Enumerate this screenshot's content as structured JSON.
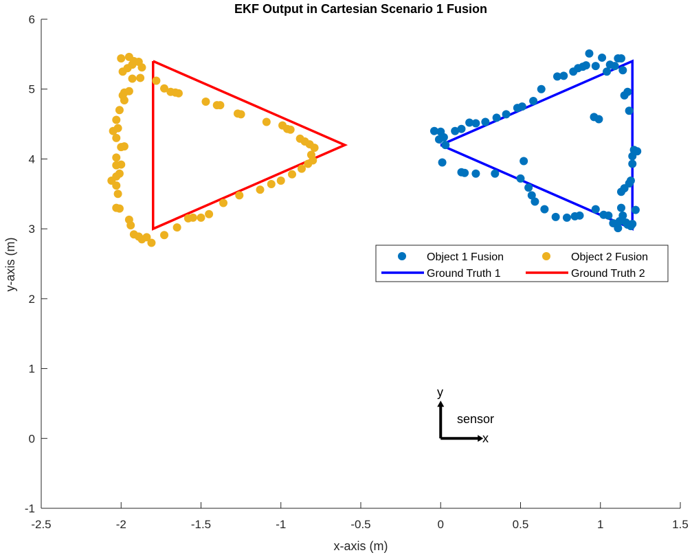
{
  "chart_data": {
    "type": "scatter",
    "title": "EKF Output in Cartesian Scenario 1 Fusion",
    "xlabel": "x-axis (m)",
    "ylabel": "y-axis (m)",
    "xlim": [
      -2.5,
      1.5
    ],
    "ylim": [
      -1,
      6
    ],
    "xticks": [
      -2.5,
      -2,
      -1.5,
      -1,
      -0.5,
      0,
      0.5,
      1,
      1.5
    ],
    "xtick_labels": [
      "-2.5",
      "-2",
      "-1.5",
      "-1",
      "-0.5",
      "0",
      "0.5",
      "1",
      "1.5"
    ],
    "yticks": [
      -1,
      0,
      1,
      2,
      3,
      4,
      5,
      6
    ],
    "ytick_labels": [
      "-1",
      "0",
      "1",
      "2",
      "3",
      "4",
      "5",
      "6"
    ],
    "grid": false,
    "legend_position": "upper-right inside, two columns",
    "legend": [
      {
        "label": "Object 1 Fusion",
        "kind": "marker",
        "color": "#0072BD"
      },
      {
        "label": "Object 2 Fusion",
        "kind": "marker",
        "color": "#EDB120"
      },
      {
        "label": "Ground Truth 1",
        "kind": "line",
        "color": "#0000FF"
      },
      {
        "label": "Ground Truth 2",
        "kind": "line",
        "color": "#FF0000"
      }
    ],
    "series": [
      {
        "name": "Object 1 Fusion",
        "kind": "scatter",
        "color": "#0072BD",
        "points": [
          [
            -0.04,
            4.4
          ],
          [
            0.0,
            4.39
          ],
          [
            0.02,
            4.31
          ],
          [
            -0.01,
            4.28
          ],
          [
            0.03,
            4.2
          ],
          [
            0.09,
            4.4
          ],
          [
            0.13,
            4.43
          ],
          [
            0.18,
            4.52
          ],
          [
            0.22,
            4.51
          ],
          [
            0.28,
            4.53
          ],
          [
            0.35,
            4.59
          ],
          [
            0.41,
            4.64
          ],
          [
            0.48,
            4.73
          ],
          [
            0.51,
            4.75
          ],
          [
            0.58,
            4.83
          ],
          [
            0.63,
            5.0
          ],
          [
            0.73,
            5.18
          ],
          [
            0.77,
            5.19
          ],
          [
            0.83,
            5.25
          ],
          [
            0.86,
            5.3
          ],
          [
            0.89,
            5.32
          ],
          [
            0.91,
            5.34
          ],
          [
            0.93,
            5.51
          ],
          [
            0.97,
            5.33
          ],
          [
            1.01,
            5.45
          ],
          [
            1.04,
            5.25
          ],
          [
            1.06,
            5.35
          ],
          [
            1.09,
            5.33
          ],
          [
            1.11,
            5.44
          ],
          [
            1.13,
            5.44
          ],
          [
            1.14,
            5.27
          ],
          [
            1.15,
            4.91
          ],
          [
            1.17,
            4.96
          ],
          [
            1.18,
            4.69
          ],
          [
            0.96,
            4.6
          ],
          [
            0.99,
            4.57
          ],
          [
            0.97,
            3.28
          ],
          [
            1.02,
            3.2
          ],
          [
            1.05,
            3.19
          ],
          [
            1.08,
            3.08
          ],
          [
            1.11,
            3.01
          ],
          [
            1.12,
            3.11
          ],
          [
            1.13,
            3.3
          ],
          [
            1.14,
            3.19
          ],
          [
            1.16,
            3.09
          ],
          [
            1.17,
            3.06
          ],
          [
            1.19,
            3.04
          ],
          [
            1.2,
            3.07
          ],
          [
            1.22,
            3.27
          ],
          [
            1.13,
            3.53
          ],
          [
            1.15,
            3.58
          ],
          [
            1.18,
            3.65
          ],
          [
            1.19,
            3.69
          ],
          [
            1.2,
            3.93
          ],
          [
            1.2,
            4.04
          ],
          [
            1.21,
            4.13
          ],
          [
            1.23,
            4.11
          ],
          [
            0.01,
            3.95
          ],
          [
            0.13,
            3.81
          ],
          [
            0.15,
            3.8
          ],
          [
            0.22,
            3.79
          ],
          [
            0.34,
            3.79
          ],
          [
            0.52,
            3.97
          ],
          [
            0.5,
            3.72
          ],
          [
            0.55,
            3.59
          ],
          [
            0.57,
            3.48
          ],
          [
            0.59,
            3.39
          ],
          [
            0.65,
            3.28
          ],
          [
            0.72,
            3.17
          ],
          [
            0.79,
            3.16
          ],
          [
            0.84,
            3.18
          ],
          [
            0.87,
            3.19
          ]
        ]
      },
      {
        "name": "Object 2 Fusion",
        "kind": "scatter",
        "color": "#EDB120",
        "points": [
          [
            -2.0,
            5.44
          ],
          [
            -1.95,
            5.46
          ],
          [
            -1.93,
            5.35
          ],
          [
            -1.96,
            5.3
          ],
          [
            -1.99,
            5.25
          ],
          [
            -1.92,
            5.4
          ],
          [
            -1.89,
            5.39
          ],
          [
            -1.87,
            5.31
          ],
          [
            -1.93,
            5.15
          ],
          [
            -1.95,
            4.97
          ],
          [
            -1.98,
            4.95
          ],
          [
            -1.99,
            4.91
          ],
          [
            -1.98,
            4.84
          ],
          [
            -2.01,
            4.7
          ],
          [
            -2.03,
            4.56
          ],
          [
            -2.02,
            4.44
          ],
          [
            -2.03,
            4.3
          ],
          [
            -2.05,
            4.4
          ],
          [
            -2.0,
            4.17
          ],
          [
            -1.98,
            4.18
          ],
          [
            -2.03,
            4.02
          ],
          [
            -2.0,
            3.92
          ],
          [
            -2.03,
            3.91
          ],
          [
            -2.01,
            3.79
          ],
          [
            -2.03,
            3.75
          ],
          [
            -2.06,
            3.69
          ],
          [
            -2.03,
            3.62
          ],
          [
            -2.02,
            3.5
          ],
          [
            -2.03,
            3.3
          ],
          [
            -2.01,
            3.29
          ],
          [
            -1.95,
            3.13
          ],
          [
            -1.94,
            3.05
          ],
          [
            -1.92,
            2.92
          ],
          [
            -1.89,
            2.89
          ],
          [
            -1.87,
            2.85
          ],
          [
            -1.84,
            2.88
          ],
          [
            -1.81,
            2.8
          ],
          [
            -1.73,
            2.91
          ],
          [
            -1.65,
            3.02
          ],
          [
            -1.58,
            3.15
          ],
          [
            -1.55,
            3.16
          ],
          [
            -1.5,
            3.16
          ],
          [
            -1.45,
            3.21
          ],
          [
            -1.36,
            3.37
          ],
          [
            -1.26,
            3.48
          ],
          [
            -1.13,
            3.56
          ],
          [
            -1.06,
            3.64
          ],
          [
            -1.0,
            3.69
          ],
          [
            -0.93,
            3.78
          ],
          [
            -0.87,
            3.86
          ],
          [
            -0.83,
            3.93
          ],
          [
            -0.8,
            3.98
          ],
          [
            -0.81,
            4.06
          ],
          [
            -0.79,
            4.16
          ],
          [
            -0.82,
            4.21
          ],
          [
            -0.85,
            4.25
          ],
          [
            -0.88,
            4.29
          ],
          [
            -0.94,
            4.42
          ],
          [
            -0.96,
            4.43
          ],
          [
            -0.99,
            4.48
          ],
          [
            -1.09,
            4.53
          ],
          [
            -1.25,
            4.64
          ],
          [
            -1.27,
            4.65
          ],
          [
            -1.38,
            4.77
          ],
          [
            -1.4,
            4.77
          ],
          [
            -1.47,
            4.82
          ],
          [
            -1.64,
            4.94
          ],
          [
            -1.66,
            4.95
          ],
          [
            -1.69,
            4.96
          ],
          [
            -1.73,
            5.01
          ],
          [
            -1.78,
            5.12
          ],
          [
            -1.88,
            5.16
          ]
        ]
      },
      {
        "name": "Ground Truth 1",
        "kind": "line",
        "color": "#0000FF",
        "points": [
          [
            0.0,
            4.2
          ],
          [
            1.2,
            5.4
          ],
          [
            1.2,
            3.0
          ],
          [
            0.0,
            4.2
          ]
        ]
      },
      {
        "name": "Ground Truth 2",
        "kind": "line",
        "color": "#FF0000",
        "points": [
          [
            -1.8,
            5.4
          ],
          [
            -0.6,
            4.2
          ],
          [
            -1.8,
            3.0
          ],
          [
            -1.8,
            5.4
          ]
        ]
      }
    ],
    "annotations": {
      "sensor_label": "sensor",
      "axis_x_label": "x",
      "axis_y_label": "y",
      "sensor_origin": [
        0,
        0
      ]
    }
  }
}
